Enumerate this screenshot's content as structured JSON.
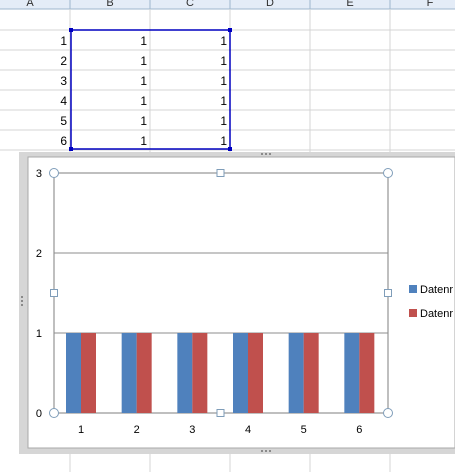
{
  "spreadsheet": {
    "column_headers": [
      "A",
      "B",
      "C",
      "D",
      "E",
      "F"
    ],
    "rows": [
      {
        "a": "1",
        "b": "1",
        "c": "1"
      },
      {
        "a": "2",
        "b": "1",
        "c": "1"
      },
      {
        "a": "3",
        "b": "1",
        "c": "1"
      },
      {
        "a": "4",
        "b": "1",
        "c": "1"
      },
      {
        "a": "5",
        "b": "1",
        "c": "1"
      },
      {
        "a": "6",
        "b": "1",
        "c": "1"
      }
    ]
  },
  "chart_data": {
    "type": "bar",
    "categories": [
      "1",
      "2",
      "3",
      "4",
      "5",
      "6"
    ],
    "series": [
      {
        "name": "Datenr",
        "values": [
          1,
          1,
          1,
          1,
          1,
          1
        ],
        "color": "#4f81bd"
      },
      {
        "name": "Datenr",
        "values": [
          1,
          1,
          1,
          1,
          1,
          1
        ],
        "color": "#c0504d"
      }
    ],
    "ylim": [
      0,
      3
    ],
    "yticks": [
      "0",
      "1",
      "2",
      "3"
    ],
    "grid": true,
    "legend": "right"
  }
}
